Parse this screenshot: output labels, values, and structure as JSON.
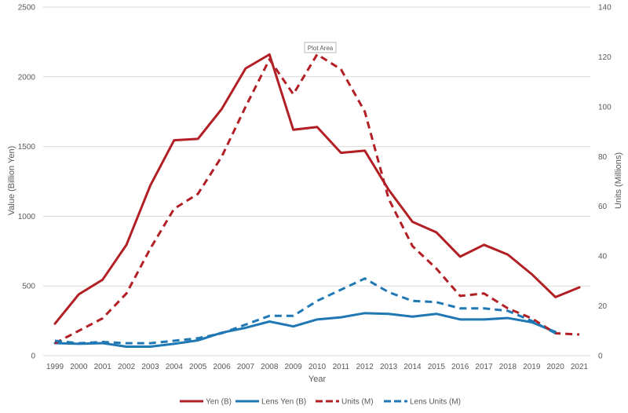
{
  "chart_data": {
    "type": "line",
    "title": "",
    "xlabel": "Year",
    "ylabel": "Value (Billion Yen)",
    "y2label": "Units (Millions)",
    "x": [
      1999,
      2000,
      2001,
      2002,
      2003,
      2004,
      2005,
      2006,
      2007,
      2008,
      2009,
      2010,
      2011,
      2012,
      2013,
      2014,
      2015,
      2016,
      2017,
      2018,
      2019,
      2020,
      2021
    ],
    "ylim": [
      0,
      2500
    ],
    "y_ticks": [
      0,
      500,
      1000,
      1500,
      2000,
      2500
    ],
    "y2lim": [
      0,
      140
    ],
    "y2_ticks": [
      0,
      20,
      40,
      60,
      80,
      100,
      120,
      140
    ],
    "grid": true,
    "legend_position": "bottom",
    "annotation": "Plot Area",
    "series": [
      {
        "name": "Yen (B)",
        "axis": "left",
        "color": "#b21f24",
        "dash": "solid",
        "values": [
          230,
          440,
          545,
          795,
          1220,
          1545,
          1555,
          1770,
          2060,
          2160,
          1620,
          1640,
          1455,
          1470,
          1190,
          960,
          885,
          710,
          795,
          725,
          585,
          420,
          490
        ]
      },
      {
        "name": "Lens Yen (B)",
        "axis": "left",
        "color": "#1f78b4",
        "dash": "solid",
        "values": [
          90,
          85,
          90,
          65,
          65,
          85,
          110,
          165,
          200,
          245,
          210,
          260,
          275,
          305,
          300,
          280,
          300,
          260,
          260,
          270,
          240,
          170,
          null
        ]
      },
      {
        "name": "Units (M)",
        "axis": "right",
        "color": "#b21f24",
        "dash": "dashed",
        "values": [
          5,
          10,
          15,
          25,
          43,
          59,
          65,
          80,
          100,
          119,
          105,
          121,
          115,
          98,
          63,
          44,
          35,
          24,
          25,
          19,
          15,
          9,
          8.5
        ]
      },
      {
        "name": "Lens Units (M)",
        "axis": "right",
        "color": "#1f78b4",
        "dash": "dashed",
        "values": [
          6,
          5,
          5.5,
          5,
          5,
          6,
          7,
          9,
          12.5,
          16,
          16,
          22,
          26.5,
          31,
          25.5,
          22,
          21.5,
          19,
          19,
          18,
          14,
          9,
          null
        ]
      }
    ]
  }
}
